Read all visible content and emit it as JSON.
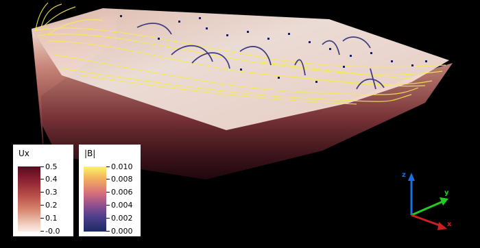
{
  "legend_ux": {
    "title": "Ux",
    "ticks": [
      "0.5",
      "0.4",
      "0.3",
      "0.2",
      "0.1",
      "-0.0"
    ]
  },
  "legend_b": {
    "title": "|B|",
    "ticks": [
      "0.010",
      "0.008",
      "0.006",
      "0.004",
      "0.002",
      "0.000"
    ]
  },
  "axes": {
    "z_label": "z",
    "y_label": "y",
    "x_label": "x",
    "z_color": "#1a6ee6",
    "y_color": "#22cc22",
    "x_color": "#cc2020"
  }
}
